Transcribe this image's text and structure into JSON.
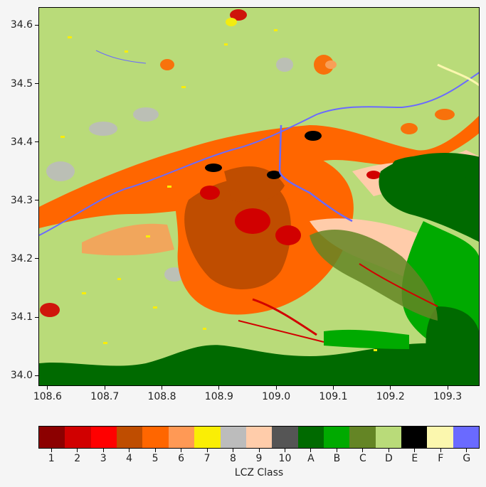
{
  "map": {
    "x_ticks": [
      "108.6",
      "108.7",
      "108.8",
      "108.9",
      "109.0",
      "109.1",
      "109.2",
      "109.3"
    ],
    "y_ticks": [
      "34.6",
      "34.5",
      "34.4",
      "34.3",
      "34.2",
      "34.1",
      "34.0"
    ],
    "x_tick_values": [
      108.6,
      108.7,
      108.8,
      108.9,
      109.0,
      109.1,
      109.2,
      109.3
    ],
    "y_tick_values": [
      34.6,
      34.5,
      34.4,
      34.3,
      34.2,
      34.1,
      34.0
    ],
    "x_range": [
      108.584,
      109.356
    ],
    "y_range": [
      33.982,
      34.631
    ]
  },
  "colorbar": {
    "title": "LCZ Class",
    "classes": [
      {
        "label": "1",
        "color": "#8c0000"
      },
      {
        "label": "2",
        "color": "#d10000"
      },
      {
        "label": "3",
        "color": "#ff0000"
      },
      {
        "label": "4",
        "color": "#bf4d00"
      },
      {
        "label": "5",
        "color": "#ff6600"
      },
      {
        "label": "6",
        "color": "#ff9955"
      },
      {
        "label": "7",
        "color": "#faee05"
      },
      {
        "label": "8",
        "color": "#bcbcbc"
      },
      {
        "label": "9",
        "color": "#ffccaa"
      },
      {
        "label": "10",
        "color": "#555555"
      },
      {
        "label": "A",
        "color": "#006a00"
      },
      {
        "label": "B",
        "color": "#00aa00"
      },
      {
        "label": "C",
        "color": "#648525"
      },
      {
        "label": "D",
        "color": "#b9db79"
      },
      {
        "label": "E",
        "color": "#000000"
      },
      {
        "label": "F",
        "color": "#fbf7ae"
      },
      {
        "label": "G",
        "color": "#6a6aff"
      }
    ]
  }
}
